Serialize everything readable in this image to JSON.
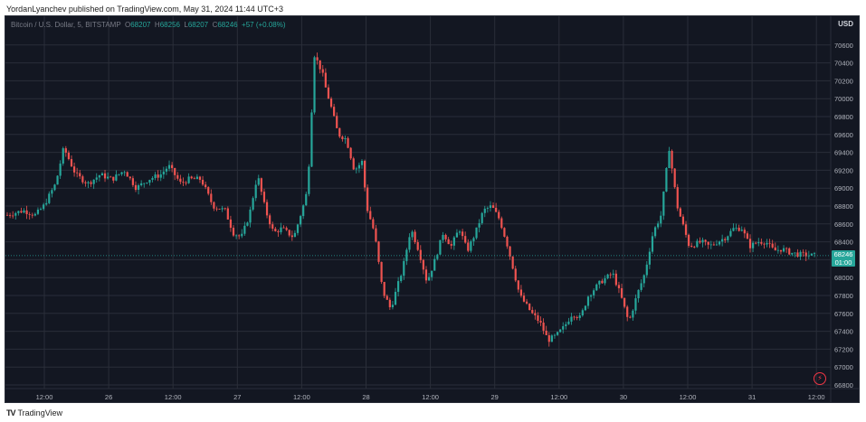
{
  "banner": "YordanLyanchev published on TradingView.com, May 31, 2024 11:44 UTC+3",
  "brand": {
    "logo": "TV",
    "name": "TradingView"
  },
  "legend": {
    "symbol": "Bitcoin / U.S. Dollar, 5, BITSTAMP",
    "o_label": "O",
    "o": "68207",
    "h_label": "H",
    "h": "68256",
    "l_label": "L",
    "l": "68207",
    "c_label": "C",
    "c": "68246",
    "change": "+57 (+0.08%)"
  },
  "currency": "USD",
  "last_price": {
    "value": "68246",
    "countdown": "01:00"
  },
  "colors": {
    "up": "#26a69a",
    "down": "#ef5350",
    "background": "#131722",
    "grid": "#2a2e39"
  },
  "icons": {
    "alert": "lightning-icon"
  },
  "chart_data": {
    "type": "candlestick",
    "symbol": "Bitcoin / U.S. Dollar",
    "interval": "5",
    "exchange": "BITSTAMP",
    "ylim": [
      66800,
      70800
    ],
    "yticks": [
      66800,
      67000,
      67200,
      67400,
      67600,
      67800,
      68000,
      68200,
      68400,
      68600,
      68800,
      69000,
      69200,
      69400,
      69600,
      69800,
      70000,
      70200,
      70400,
      70600
    ],
    "x_ticks": [
      "12:00",
      "26",
      "12:00",
      "27",
      "12:00",
      "28",
      "12:00",
      "29",
      "12:00",
      "30",
      "12:00",
      "31",
      "12:00"
    ],
    "grid": true,
    "last_close": 68246,
    "path_x": [
      0,
      0.02,
      0.035,
      0.045,
      0.06,
      0.07,
      0.085,
      0.1,
      0.115,
      0.13,
      0.145,
      0.16,
      0.175,
      0.19,
      0.2,
      0.215,
      0.225,
      0.24,
      0.255,
      0.27,
      0.28,
      0.29,
      0.3,
      0.31,
      0.32,
      0.33,
      0.34,
      0.355,
      0.37,
      0.375,
      0.38,
      0.39,
      0.395,
      0.4,
      0.41,
      0.42,
      0.43,
      0.44,
      0.445,
      0.455,
      0.465,
      0.475,
      0.49,
      0.5,
      0.51,
      0.52,
      0.53,
      0.54,
      0.55,
      0.56,
      0.57,
      0.58,
      0.59,
      0.6,
      0.61,
      0.62,
      0.635,
      0.65,
      0.66,
      0.67,
      0.68,
      0.69,
      0.7,
      0.71,
      0.72,
      0.735,
      0.75,
      0.76,
      0.77,
      0.78,
      0.79,
      0.8,
      0.81,
      0.82,
      0.83,
      0.845,
      0.86,
      0.87,
      0.88,
      0.89,
      0.9,
      0.91,
      0.92,
      0.93,
      0.94,
      0.95,
      0.96,
      0.97,
      0.98,
      1.0
    ],
    "path_y": [
      68700,
      68750,
      68700,
      68800,
      69050,
      69450,
      69150,
      69050,
      69150,
      69100,
      69200,
      69000,
      69100,
      69150,
      69250,
      69050,
      69100,
      69100,
      68800,
      68750,
      68500,
      68450,
      68700,
      69150,
      68750,
      68500,
      68550,
      68450,
      68900,
      69400,
      70500,
      70300,
      70100,
      69950,
      69600,
      69550,
      69200,
      69300,
      68800,
      68500,
      67850,
      67650,
      68100,
      68550,
      68300,
      67950,
      68200,
      68500,
      68350,
      68550,
      68300,
      68500,
      68750,
      68800,
      68650,
      68350,
      67800,
      67600,
      67500,
      67300,
      67350,
      67450,
      67600,
      67550,
      67800,
      67950,
      68050,
      67800,
      67500,
      67800,
      68050,
      68500,
      68700,
      69450,
      68800,
      68350,
      68400,
      68350,
      68400,
      68450,
      68550,
      68550,
      68350,
      68400,
      68400,
      68300,
      68320,
      68280,
      68260,
      68246
    ]
  }
}
